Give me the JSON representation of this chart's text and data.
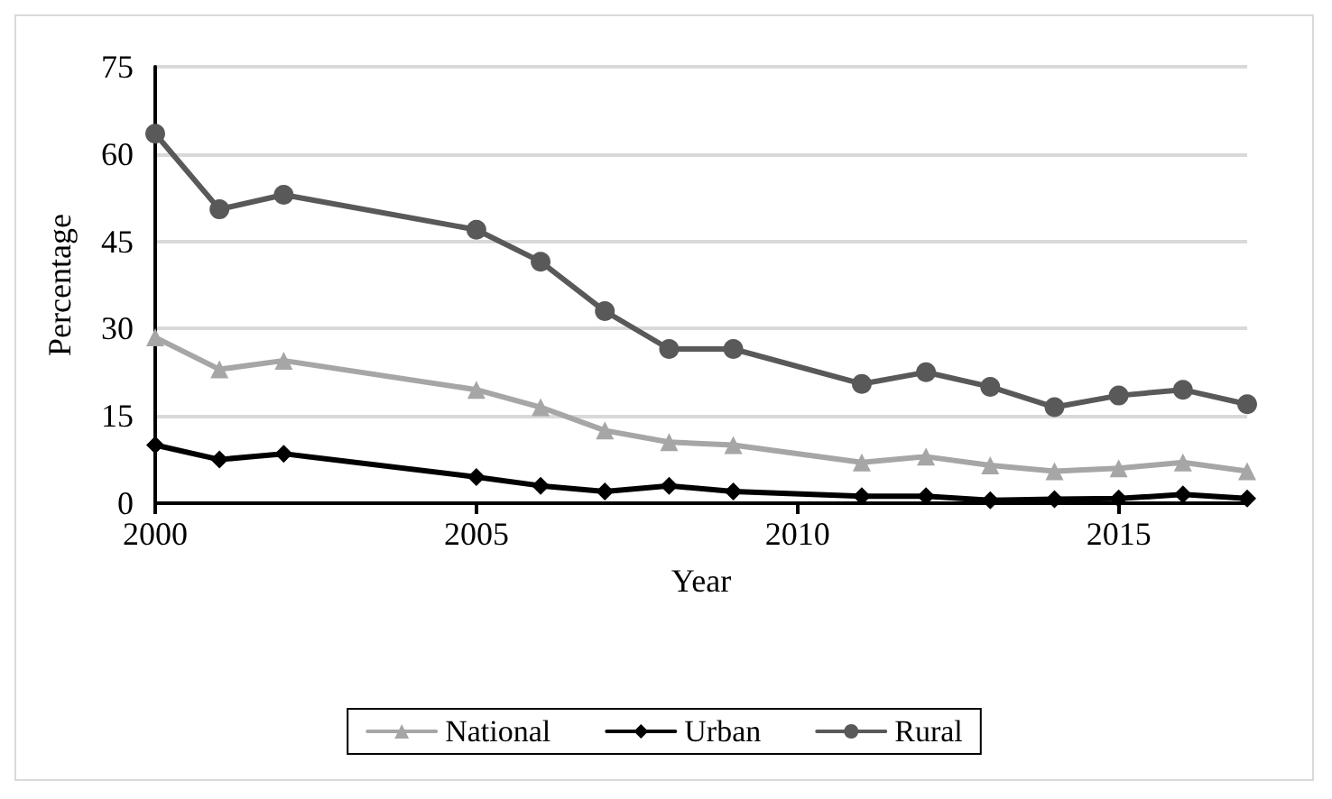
{
  "chart_data": {
    "type": "line",
    "xlabel": "Year",
    "ylabel": "Percentage",
    "x": [
      2000,
      2001,
      2002,
      2005,
      2006,
      2007,
      2008,
      2009,
      2011,
      2012,
      2013,
      2014,
      2015,
      2016,
      2017
    ],
    "series": [
      {
        "name": "National",
        "color": "#a6a6a6",
        "marker": "triangle",
        "values": [
          28.5,
          23,
          24.5,
          19.5,
          16.5,
          12.5,
          10.5,
          10,
          7,
          8,
          6.5,
          5.5,
          6,
          7,
          5.5
        ]
      },
      {
        "name": "Urban",
        "color": "#000000",
        "marker": "diamond",
        "values": [
          10,
          7.5,
          8.5,
          4.5,
          3,
          2,
          3,
          2,
          1.2,
          1.2,
          0.5,
          0.7,
          0.8,
          1.5,
          0.8
        ]
      },
      {
        "name": "Rural",
        "color": "#595959",
        "marker": "circle",
        "values": [
          63.5,
          50.5,
          53,
          47,
          41.5,
          33,
          26.5,
          26.5,
          20.5,
          22.5,
          20,
          16.5,
          18.5,
          19.5,
          17
        ]
      }
    ],
    "xlim": [
      2000,
      2017
    ],
    "xticks": [
      2000,
      2005,
      2010,
      2015
    ],
    "ylim": [
      0,
      75
    ],
    "yticks": [
      0,
      15,
      30,
      45,
      60,
      75
    ],
    "grid": "y",
    "legend": "bottom",
    "line_style": "solid"
  }
}
